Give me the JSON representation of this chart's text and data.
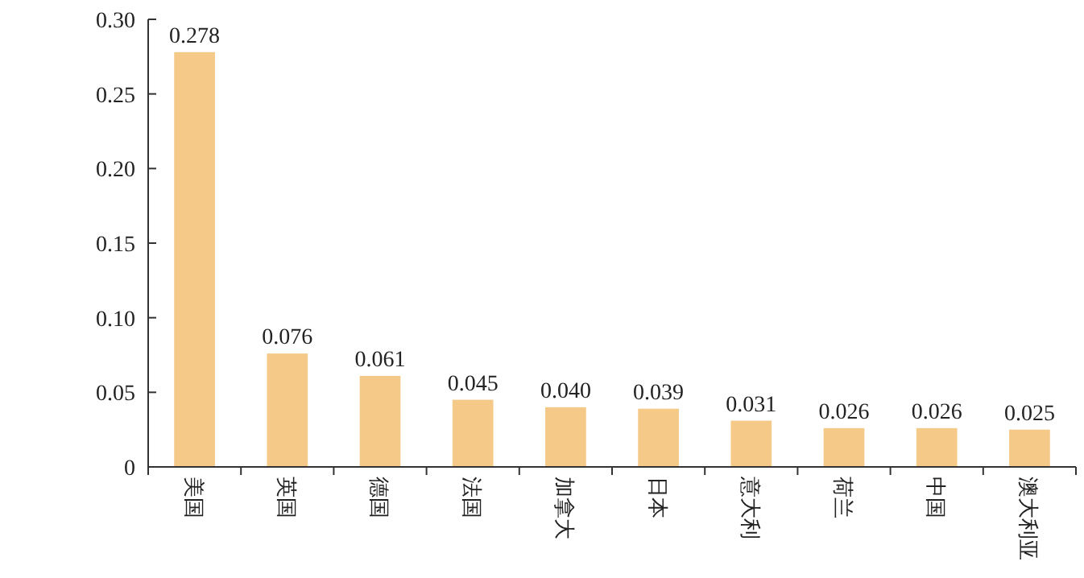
{
  "chart_data": {
    "type": "bar",
    "categories": [
      "美国",
      "英国",
      "德国",
      "法国",
      "加拿大",
      "日本",
      "意大利",
      "荷兰",
      "中国",
      "澳大利亚"
    ],
    "values": [
      0.278,
      0.076,
      0.061,
      0.045,
      0.04,
      0.039,
      0.031,
      0.026,
      0.026,
      0.025
    ],
    "color": "#f5c987",
    "ylim": [
      0,
      0.3
    ],
    "yticks": [
      0,
      0.05,
      {
        "value": 0.1,
        "label": "0.10"
      },
      0.15,
      {
        "value": 0.2,
        "label": "0.20"
      },
      0.25,
      {
        "value": 0.3,
        "label": "0.30"
      }
    ],
    "value_labels": [
      "0.278",
      "0.076",
      "0.061",
      "0.045",
      "0.040",
      "0.039",
      "0.031",
      "0.026",
      "0.026",
      "0.025"
    ]
  }
}
